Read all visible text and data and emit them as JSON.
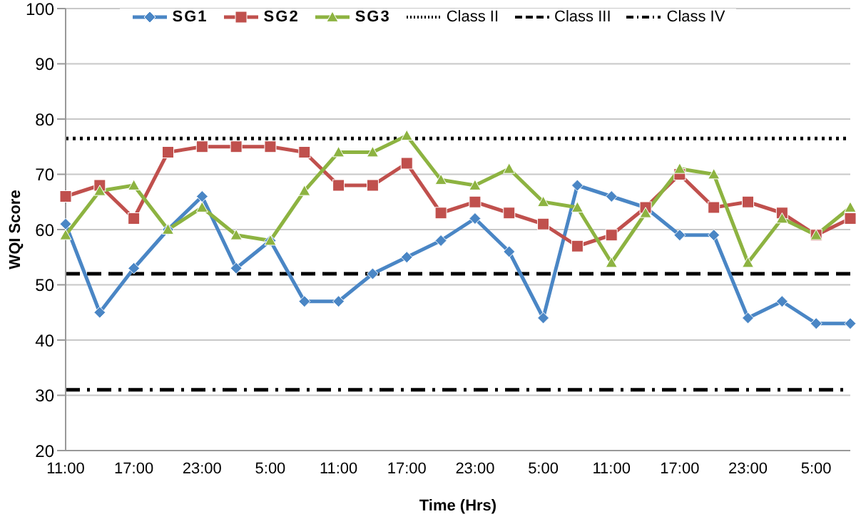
{
  "chart_data": {
    "type": "line",
    "xlabel": "Time (Hrs)",
    "ylabel": "WQI Score",
    "categories": [
      "11:00",
      null,
      "17:00",
      null,
      "23:00",
      null,
      "5:00",
      null,
      "11:00",
      null,
      "17:00",
      null,
      "23:00",
      null,
      "5:00",
      null,
      "11:00",
      null,
      "17:00",
      null,
      "23:00",
      null,
      "5:00",
      null
    ],
    "series": [
      {
        "name": "SG1",
        "color": "#4a86c5",
        "marker": "diamond",
        "values": [
          61,
          45,
          53,
          60,
          66,
          53,
          58,
          47,
          47,
          52,
          55,
          58,
          62,
          56,
          44,
          68,
          66,
          64,
          59,
          59,
          44,
          47,
          43,
          43
        ]
      },
      {
        "name": "SG2",
        "color": "#c0504d",
        "marker": "square",
        "values": [
          66,
          68,
          62,
          74,
          75,
          75,
          75,
          74,
          68,
          68,
          72,
          63,
          65,
          63,
          61,
          57,
          59,
          64,
          70,
          64,
          65,
          63,
          59,
          62
        ]
      },
      {
        "name": "SG3",
        "color": "#8db341",
        "marker": "triangle",
        "values": [
          59,
          67,
          68,
          60,
          64,
          59,
          58,
          67,
          74,
          74,
          77,
          69,
          68,
          71,
          65,
          64,
          54,
          63,
          71,
          70,
          54,
          62,
          59,
          64
        ]
      }
    ],
    "ref_lines": [
      {
        "axis": "y",
        "value": 76.5,
        "label": "Class II",
        "color": "#000000",
        "line_style": "dotted"
      },
      {
        "axis": "y",
        "value": 52,
        "label": "Class III",
        "color": "#000000",
        "line_style": "dashed"
      },
      {
        "axis": "y",
        "value": 31,
        "label": "Class IV",
        "color": "#000000",
        "line_style": "dashdot"
      }
    ],
    "ylim": [
      20,
      100
    ],
    "yticks": [
      20,
      30,
      40,
      50,
      60,
      70,
      80,
      90,
      100
    ],
    "grid": "y",
    "legend": "top"
  }
}
